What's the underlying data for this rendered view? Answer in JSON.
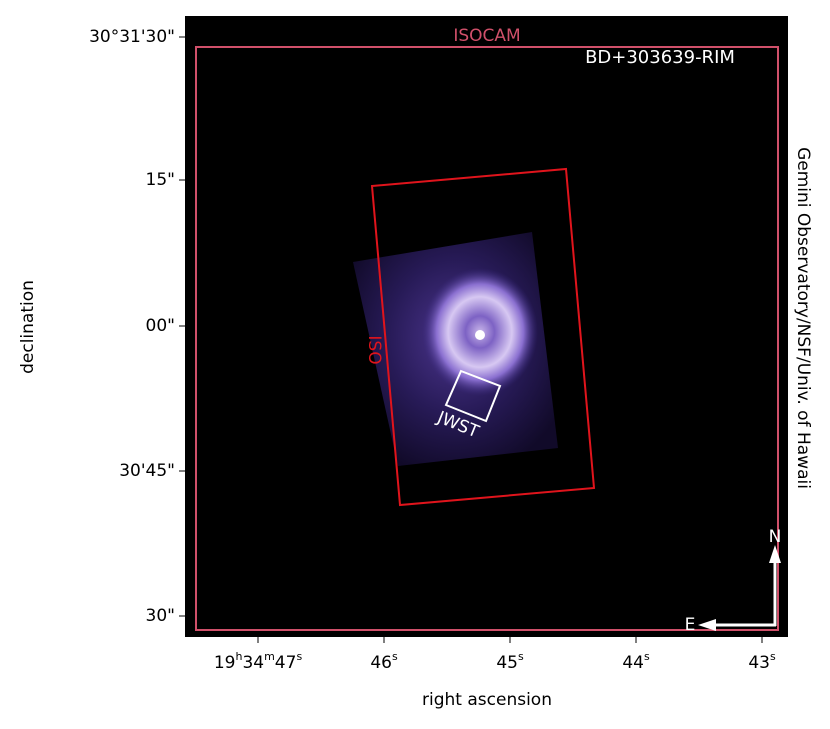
{
  "title": "BD+303639-RIM",
  "labels": {
    "isocam": "ISOCAM",
    "iso": "ISO",
    "jwst": "JWST",
    "north": "N",
    "east": "E",
    "credit": "Gemini Observatory/NSF/Univ. of Hawaii"
  },
  "x_axis": {
    "label": "right ascension",
    "ticks": [
      [
        "19",
        "h",
        "34",
        "m",
        "47",
        "s"
      ],
      [
        "46",
        "s"
      ],
      [
        "45",
        "s"
      ],
      [
        "44",
        "s"
      ],
      [
        "43",
        "s"
      ]
    ]
  },
  "y_axis": {
    "label": "declination",
    "ticks": [
      "30°31'30\"",
      "15\"",
      "00\"",
      "30'45\"",
      "30\""
    ]
  }
}
